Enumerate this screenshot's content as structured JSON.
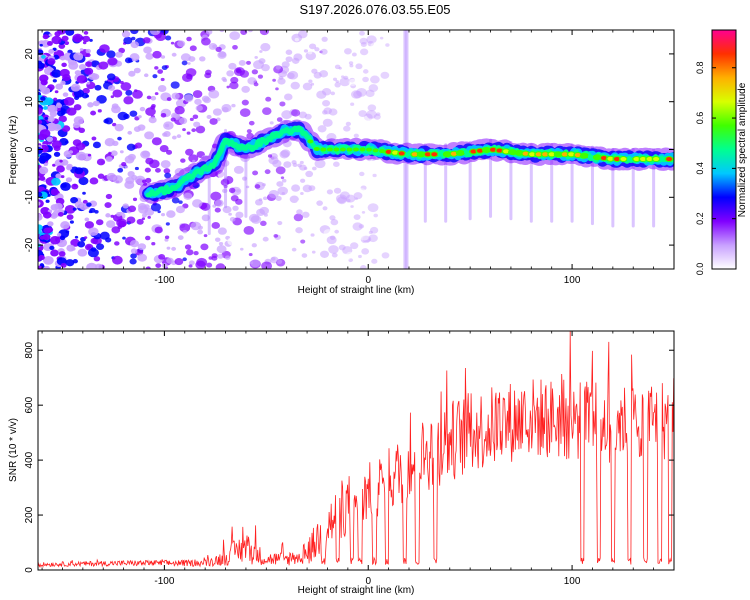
{
  "title": "S197.2026.076.03.55.E05",
  "chart_data": [
    {
      "type": "heatmap",
      "name": "spectrogram",
      "xlabel": "Height of straight line (km)",
      "ylabel": "Frequency (Hz)",
      "xlim": [
        -162,
        150
      ],
      "ylim": [
        -25,
        25
      ],
      "xticks": [
        -100,
        0,
        100
      ],
      "xtick_labels": [
        "-100",
        "0",
        "100"
      ],
      "yticks": [
        -20,
        -10,
        0,
        10,
        20
      ],
      "ytick_labels": [
        "-20",
        "-10",
        "0",
        "10",
        "20"
      ],
      "colorbar": {
        "label": "Normalized spectral amplitude",
        "range": [
          0,
          0.95
        ],
        "ticks": [
          0.0,
          0.2,
          0.4,
          0.6,
          0.8
        ],
        "tick_labels": [
          "0.0",
          "0.2",
          "0.4",
          "0.6",
          "0.8"
        ],
        "colors": [
          "#ffffff",
          "#c8a0ff",
          "#8000ff",
          "#0000ff",
          "#00c8ff",
          "#00ff90",
          "#40ff00",
          "#d8ff00",
          "#ffb000",
          "#ff3000",
          "#ff0090"
        ]
      },
      "ridge": {
        "x": [
          -105,
          -95,
          -85,
          -75,
          -70,
          -60,
          -50,
          -40,
          -33,
          -25,
          -15,
          0,
          20,
          40,
          60,
          80,
          100,
          120,
          135,
          148
        ],
        "y": [
          -9,
          -8,
          -5,
          -3,
          2,
          0,
          2,
          4,
          4,
          0,
          0,
          0,
          -1,
          -1,
          0,
          -1,
          -1,
          -2,
          -2,
          -2
        ]
      }
    },
    {
      "type": "line",
      "name": "snr",
      "xlabel": "Height of straight line (km)",
      "ylabel": "SNR (10 * v/v)",
      "xlim": [
        -162,
        150
      ],
      "ylim": [
        0,
        870
      ],
      "xticks": [
        -100,
        0,
        100
      ],
      "xtick_labels": [
        "-100",
        "0",
        "100"
      ],
      "yticks": [
        0,
        200,
        400,
        600,
        800
      ],
      "ytick_labels": [
        "0",
        "200",
        "400",
        "600",
        "800"
      ],
      "line_color": "#ff2020",
      "envelope": {
        "x": [
          -162,
          -120,
          -80,
          -70,
          -65,
          -60,
          -55,
          -50,
          -40,
          -30,
          -25,
          -20,
          -10,
          0,
          10,
          20,
          30,
          40,
          50,
          60,
          70,
          80,
          90,
          100,
          110,
          120,
          130,
          140,
          150
        ],
        "base": [
          20,
          25,
          25,
          45,
          70,
          80,
          60,
          40,
          40,
          60,
          110,
          160,
          240,
          280,
          330,
          380,
          430,
          470,
          500,
          520,
          540,
          555,
          550,
          545,
          540,
          535,
          545,
          550,
          545
        ],
        "amp": [
          8,
          10,
          12,
          30,
          45,
          60,
          40,
          25,
          25,
          40,
          80,
          100,
          110,
          110,
          120,
          130,
          140,
          150,
          150,
          150,
          150,
          150,
          150,
          150,
          150,
          150,
          150,
          150,
          150
        ]
      },
      "dips_x": [
        -33,
        -22,
        -15,
        -8,
        -4,
        3,
        9,
        18,
        24,
        33,
        105,
        113,
        120,
        128,
        136,
        143,
        148
      ]
    }
  ]
}
